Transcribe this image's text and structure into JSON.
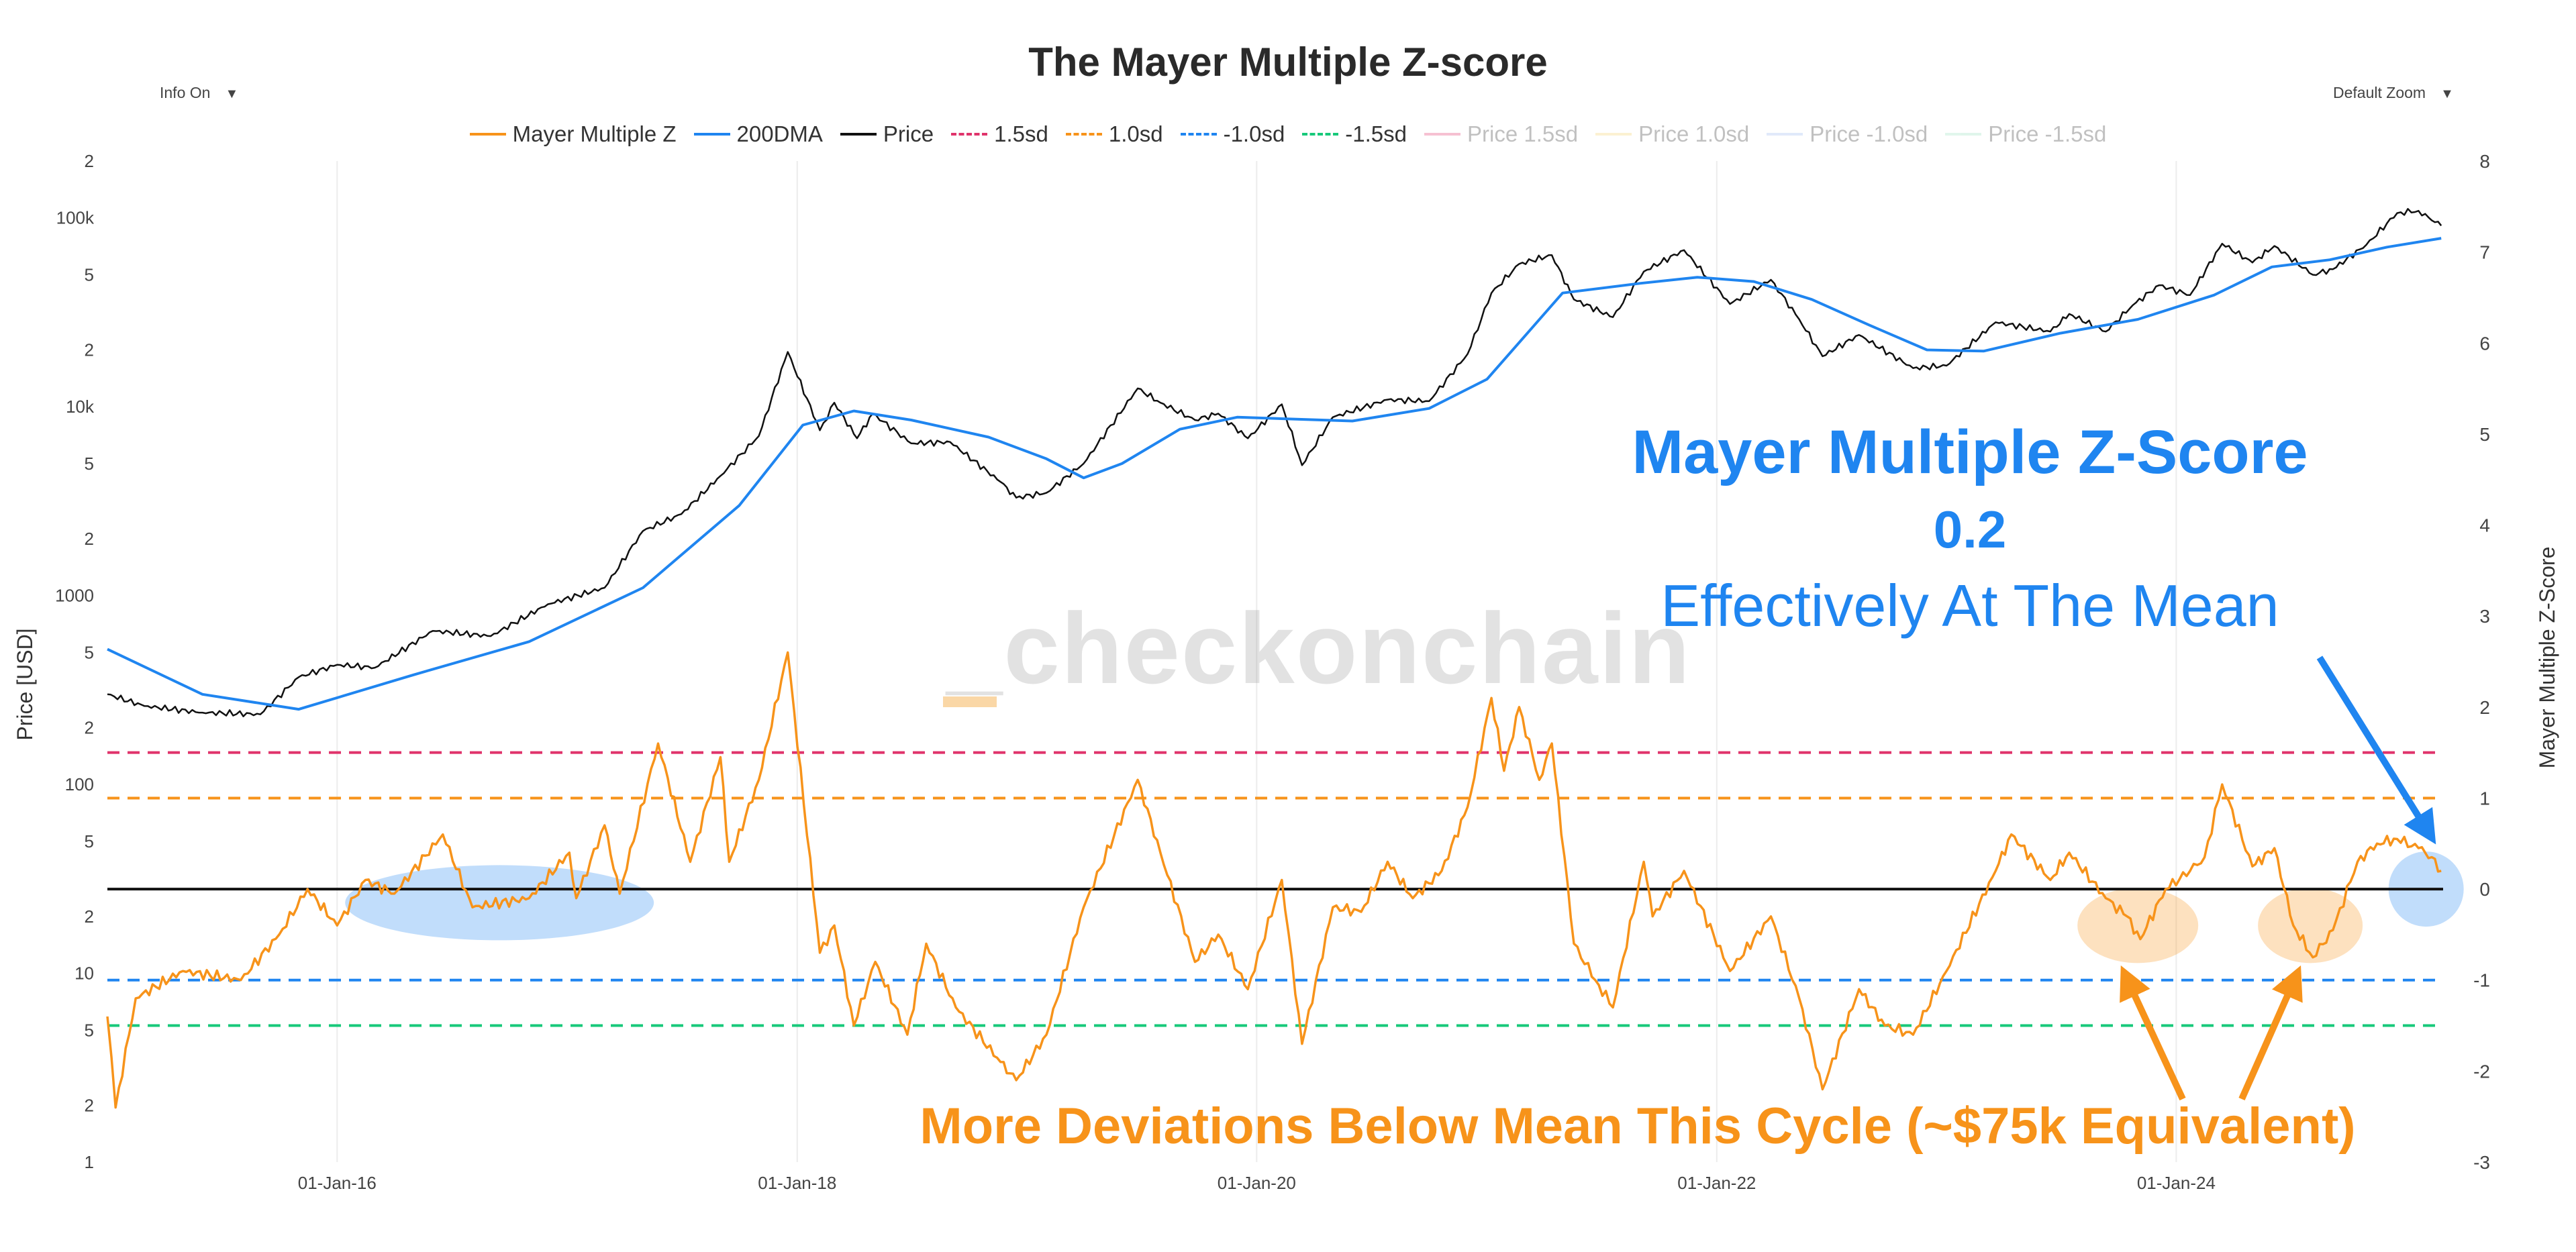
{
  "header": {
    "title": "The Mayer Multiple Z-score",
    "info_dropdown": "Info On",
    "zoom_dropdown": "Default Zoom"
  },
  "legend": [
    {
      "label": "Mayer Multiple Z",
      "color": "#f7931a",
      "style": "solid",
      "faded": false
    },
    {
      "label": "200DMA",
      "color": "#1f85f0",
      "style": "solid",
      "faded": false
    },
    {
      "label": "Price",
      "color": "#111111",
      "style": "solid",
      "faded": false
    },
    {
      "label": "1.5sd",
      "color": "#e0336b",
      "style": "dashed",
      "faded": false
    },
    {
      "label": "1.0sd",
      "color": "#f7931a",
      "style": "dashed",
      "faded": false
    },
    {
      "label": "-1.0sd",
      "color": "#1f85f0",
      "style": "dashed",
      "faded": false
    },
    {
      "label": "-1.5sd",
      "color": "#17c97a",
      "style": "dashed",
      "faded": false
    },
    {
      "label": "Price 1.5sd",
      "color": "#e0336b",
      "style": "solid",
      "faded": true
    },
    {
      "label": "Price 1.0sd",
      "color": "#f5d26b",
      "style": "solid",
      "faded": true
    },
    {
      "label": "Price -1.0sd",
      "color": "#9bb7f0",
      "style": "solid",
      "faded": true
    },
    {
      "label": "Price -1.5sd",
      "color": "#9be0c0",
      "style": "solid",
      "faded": true
    }
  ],
  "watermark": "_checkonchain",
  "annotations": {
    "blue_title": "Mayer Multiple Z-Score",
    "blue_value": "0.2",
    "blue_subtitle": "Effectively At The Mean",
    "orange_note": "More Deviations Below Mean This Cycle (~$75k Equivalent)"
  },
  "chart_data": {
    "type": "line",
    "title": "The Mayer Multiple Z-score",
    "x_ticks": [
      "01-Jan-16",
      "01-Jan-18",
      "01-Jan-20",
      "01-Jan-22",
      "01-Jan-24"
    ],
    "x_range": [
      "2015-01-01",
      "2025-02-28"
    ],
    "left_axis": {
      "label": "Price [USD]",
      "scale": "log",
      "range": [
        1,
        200000
      ],
      "tick_labels": [
        "1",
        "2",
        "5",
        "10",
        "2",
        "5",
        "100",
        "2",
        "5",
        "1000",
        "2",
        "5",
        "10k",
        "2",
        "5",
        "100k",
        "2"
      ]
    },
    "right_axis": {
      "label": "Mayer Multiple Z-Score",
      "range": [
        -3,
        8
      ],
      "tick_labels": [
        "-3",
        "-2",
        "-1",
        "0",
        "1",
        "2",
        "3",
        "4",
        "5",
        "6",
        "7",
        "8"
      ]
    },
    "reference_lines": [
      {
        "name": "1.5sd",
        "value": 1.5,
        "color": "#e0336b"
      },
      {
        "name": "1.0sd",
        "value": 1.0,
        "color": "#f7931a"
      },
      {
        "name": "-1.0sd",
        "value": -1.0,
        "color": "#1f85f0"
      },
      {
        "name": "-1.5sd",
        "value": -1.5,
        "color": "#17c97a"
      },
      {
        "name": "mean",
        "value": 0,
        "color": "#111111"
      }
    ],
    "series": [
      {
        "name": "Price",
        "axis": "left",
        "color": "#111111",
        "points": [
          [
            "2015-01-01",
            300
          ],
          [
            "2015-03-01",
            260
          ],
          [
            "2015-06-01",
            240
          ],
          [
            "2015-09-01",
            235
          ],
          [
            "2015-11-01",
            370
          ],
          [
            "2016-01-01",
            430
          ],
          [
            "2016-03-01",
            415
          ],
          [
            "2016-06-01",
            650
          ],
          [
            "2016-09-01",
            610
          ],
          [
            "2016-12-01",
            900
          ],
          [
            "2017-03-01",
            1100
          ],
          [
            "2017-05-01",
            2200
          ],
          [
            "2017-07-01",
            2700
          ],
          [
            "2017-09-01",
            4300
          ],
          [
            "2017-11-01",
            7000
          ],
          [
            "2017-12-17",
            19500
          ],
          [
            "2018-02-06",
            7500
          ],
          [
            "2018-03-01",
            10500
          ],
          [
            "2018-04-06",
            6800
          ],
          [
            "2018-05-01",
            9200
          ],
          [
            "2018-07-01",
            6400
          ],
          [
            "2018-09-01",
            6500
          ],
          [
            "2018-11-20",
            4000
          ],
          [
            "2018-12-15",
            3300
          ],
          [
            "2019-02-01",
            3500
          ],
          [
            "2019-04-01",
            5000
          ],
          [
            "2019-06-26",
            12500
          ],
          [
            "2019-08-01",
            10500
          ],
          [
            "2019-09-25",
            8500
          ],
          [
            "2019-11-01",
            9200
          ],
          [
            "2019-12-18",
            6800
          ],
          [
            "2020-02-10",
            10300
          ],
          [
            "2020-03-13",
            4900
          ],
          [
            "2020-05-01",
            8800
          ],
          [
            "2020-07-27",
            10900
          ],
          [
            "2020-10-01",
            10700
          ],
          [
            "2020-12-01",
            19000
          ],
          [
            "2021-01-08",
            40000
          ],
          [
            "2021-02-21",
            57000
          ],
          [
            "2021-04-14",
            63500
          ],
          [
            "2021-05-19",
            37000
          ],
          [
            "2021-07-20",
            29800
          ],
          [
            "2021-09-07",
            52000
          ],
          [
            "2021-11-10",
            67500
          ],
          [
            "2022-01-22",
            35000
          ],
          [
            "2022-03-28",
            47000
          ],
          [
            "2022-05-12",
            29000
          ],
          [
            "2022-06-18",
            18500
          ],
          [
            "2022-08-15",
            24000
          ],
          [
            "2022-11-09",
            16000
          ],
          [
            "2023-01-01",
            16500
          ],
          [
            "2023-03-20",
            28000
          ],
          [
            "2023-06-15",
            25000
          ],
          [
            "2023-07-15",
            31000
          ],
          [
            "2023-09-11",
            25000
          ],
          [
            "2023-10-24",
            34500
          ],
          [
            "2023-12-05",
            44000
          ],
          [
            "2024-01-23",
            39000
          ],
          [
            "2024-03-14",
            73000
          ],
          [
            "2024-05-01",
            58000
          ],
          [
            "2024-06-05",
            71000
          ],
          [
            "2024-08-05",
            50000
          ],
          [
            "2024-09-06",
            53500
          ],
          [
            "2024-10-29",
            72000
          ],
          [
            "2024-12-17",
            106000
          ],
          [
            "2025-01-20",
            109000
          ],
          [
            "2025-02-10",
            97000
          ],
          [
            "2025-02-25",
            91000
          ]
        ]
      },
      {
        "name": "200DMA",
        "axis": "left",
        "color": "#1f85f0",
        "points": [
          [
            "2015-01-01",
            520
          ],
          [
            "2015-06-01",
            300
          ],
          [
            "2015-11-01",
            250
          ],
          [
            "2016-05-01",
            380
          ],
          [
            "2016-11-01",
            570
          ],
          [
            "2017-05-01",
            1100
          ],
          [
            "2017-10-01",
            3000
          ],
          [
            "2018-01-10",
            8000
          ],
          [
            "2018-04-01",
            9500
          ],
          [
            "2018-07-01",
            8500
          ],
          [
            "2018-11-01",
            6900
          ],
          [
            "2019-02-01",
            5300
          ],
          [
            "2019-04-01",
            4200
          ],
          [
            "2019-06-01",
            5000
          ],
          [
            "2019-09-01",
            7600
          ],
          [
            "2019-12-01",
            8800
          ],
          [
            "2020-06-01",
            8400
          ],
          [
            "2020-10-01",
            9800
          ],
          [
            "2021-01-01",
            14000
          ],
          [
            "2021-05-01",
            40000
          ],
          [
            "2021-09-01",
            45000
          ],
          [
            "2021-12-01",
            48500
          ],
          [
            "2022-03-01",
            46000
          ],
          [
            "2022-06-01",
            37000
          ],
          [
            "2022-09-01",
            27000
          ],
          [
            "2022-12-01",
            20000
          ],
          [
            "2023-03-01",
            19700
          ],
          [
            "2023-07-01",
            24500
          ],
          [
            "2023-11-01",
            29000
          ],
          [
            "2024-03-01",
            39000
          ],
          [
            "2024-06-01",
            55000
          ],
          [
            "2024-09-01",
            60000
          ],
          [
            "2024-12-01",
            70000
          ],
          [
            "2025-02-25",
            78000
          ]
        ]
      },
      {
        "name": "Mayer Multiple Z",
        "axis": "right",
        "color": "#f7931a",
        "points": [
          [
            "2015-01-01",
            -1.4
          ],
          [
            "2015-01-14",
            -2.4
          ],
          [
            "2015-02-15",
            -1.2
          ],
          [
            "2015-05-01",
            -0.9
          ],
          [
            "2015-08-01",
            -1.0
          ],
          [
            "2015-10-01",
            -0.5
          ],
          [
            "2015-11-15",
            0.0
          ],
          [
            "2016-01-01",
            -0.4
          ],
          [
            "2016-02-15",
            0.1
          ],
          [
            "2016-04-01",
            -0.05
          ],
          [
            "2016-06-17",
            0.6
          ],
          [
            "2016-08-03",
            -0.2
          ],
          [
            "2016-11-01",
            -0.1
          ],
          [
            "2017-01-04",
            0.4
          ],
          [
            "2017-01-15",
            -0.1
          ],
          [
            "2017-03-01",
            0.7
          ],
          [
            "2017-03-25",
            -0.05
          ],
          [
            "2017-05-25",
            1.6
          ],
          [
            "2017-07-15",
            0.3
          ],
          [
            "2017-09-01",
            1.45
          ],
          [
            "2017-09-15",
            0.3
          ],
          [
            "2017-11-01",
            1.2
          ],
          [
            "2017-12-17",
            2.6
          ],
          [
            "2018-02-06",
            -0.7
          ],
          [
            "2018-03-01",
            -0.4
          ],
          [
            "2018-04-01",
            -1.5
          ],
          [
            "2018-05-05",
            -0.8
          ],
          [
            "2018-06-25",
            -1.6
          ],
          [
            "2018-07-25",
            -0.6
          ],
          [
            "2018-09-10",
            -1.3
          ],
          [
            "2018-11-20",
            -1.9
          ],
          [
            "2018-12-15",
            -2.1
          ],
          [
            "2019-02-01",
            -1.6
          ],
          [
            "2019-04-01",
            -0.2
          ],
          [
            "2019-06-26",
            1.2
          ],
          [
            "2019-08-01",
            0.4
          ],
          [
            "2019-09-25",
            -0.8
          ],
          [
            "2019-11-01",
            -0.5
          ],
          [
            "2019-12-18",
            -1.1
          ],
          [
            "2020-02-10",
            0.1
          ],
          [
            "2020-03-13",
            -1.7
          ],
          [
            "2020-05-01",
            -0.2
          ],
          [
            "2020-06-15",
            -0.25
          ],
          [
            "2020-07-27",
            0.3
          ],
          [
            "2020-09-05",
            -0.1
          ],
          [
            "2020-10-21",
            0.2
          ],
          [
            "2020-12-01",
            0.9
          ],
          [
            "2021-01-08",
            2.1
          ],
          [
            "2021-01-28",
            1.3
          ],
          [
            "2021-02-21",
            2.0
          ],
          [
            "2021-03-25",
            1.2
          ],
          [
            "2021-04-14",
            1.6
          ],
          [
            "2021-05-19",
            -0.6
          ],
          [
            "2021-06-22",
            -1.0
          ],
          [
            "2021-07-20",
            -1.3
          ],
          [
            "2021-09-07",
            0.3
          ],
          [
            "2021-09-21",
            -0.3
          ],
          [
            "2021-11-10",
            0.2
          ],
          [
            "2022-01-22",
            -0.9
          ],
          [
            "2022-03-28",
            -0.3
          ],
          [
            "2022-05-12",
            -1.2
          ],
          [
            "2022-06-18",
            -2.2
          ],
          [
            "2022-08-15",
            -1.1
          ],
          [
            "2022-09-25",
            -1.5
          ],
          [
            "2022-11-09",
            -1.6
          ],
          [
            "2023-01-01",
            -0.9
          ],
          [
            "2023-03-20",
            0.2
          ],
          [
            "2023-04-14",
            0.6
          ],
          [
            "2023-06-15",
            0.1
          ],
          [
            "2023-07-15",
            0.4
          ],
          [
            "2023-09-11",
            -0.1
          ],
          [
            "2023-10-15",
            -0.3
          ],
          [
            "2023-11-05",
            -0.55
          ],
          [
            "2023-12-15",
            0.0
          ],
          [
            "2024-01-23",
            0.2
          ],
          [
            "2024-02-15",
            0.35
          ],
          [
            "2024-03-14",
            1.15
          ],
          [
            "2024-05-01",
            0.25
          ],
          [
            "2024-06-05",
            0.45
          ],
          [
            "2024-07-05",
            -0.4
          ],
          [
            "2024-08-05",
            -0.75
          ],
          [
            "2024-09-06",
            -0.45
          ],
          [
            "2024-10-15",
            0.3
          ],
          [
            "2024-11-15",
            0.5
          ],
          [
            "2024-12-17",
            0.55
          ],
          [
            "2025-01-20",
            0.45
          ],
          [
            "2025-02-10",
            0.35
          ],
          [
            "2025-02-25",
            0.2
          ]
        ]
      }
    ],
    "highlight_regions": [
      {
        "x_center": "2016-09-15",
        "y_center": -0.15,
        "color": "#1f85f0"
      },
      {
        "x_center": "2023-11-01",
        "y_center": -0.4,
        "color": "#f7931a"
      },
      {
        "x_center": "2024-08-01",
        "y_center": -0.4,
        "color": "#f7931a"
      },
      {
        "x_center": "2025-02-01",
        "y_center": 0.0,
        "color": "#1f85f0"
      }
    ]
  }
}
